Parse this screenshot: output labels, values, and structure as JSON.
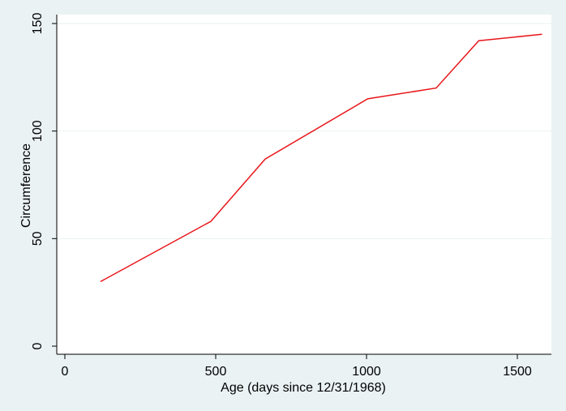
{
  "chart_data": {
    "type": "line",
    "xlabel": "Age (days since 12/31/1968)",
    "ylabel": "Circumference",
    "xlim": [
      0,
      1600
    ],
    "ylim": [
      0,
      150
    ],
    "x_ticks": [
      0,
      500,
      1000,
      1500
    ],
    "y_ticks": [
      0,
      50,
      100,
      150
    ],
    "x_tick_labels": [
      "0",
      "500",
      "1000",
      "1500"
    ],
    "y_tick_labels": [
      "0",
      "50",
      "100",
      "150"
    ],
    "grid": "horizontal",
    "legend": "none",
    "series": [
      {
        "color": "#e8161b",
        "x": [
          118,
          484,
          664,
          1004,
          1231,
          1372,
          1582
        ],
        "y": [
          30,
          58,
          87,
          115,
          120,
          142,
          145
        ]
      }
    ]
  },
  "colors": {
    "background": "#eaf2f3",
    "plot_area": "#ffffff",
    "gridline": "#eaf2f3",
    "axis": "#000000",
    "line": "#e8161b"
  }
}
